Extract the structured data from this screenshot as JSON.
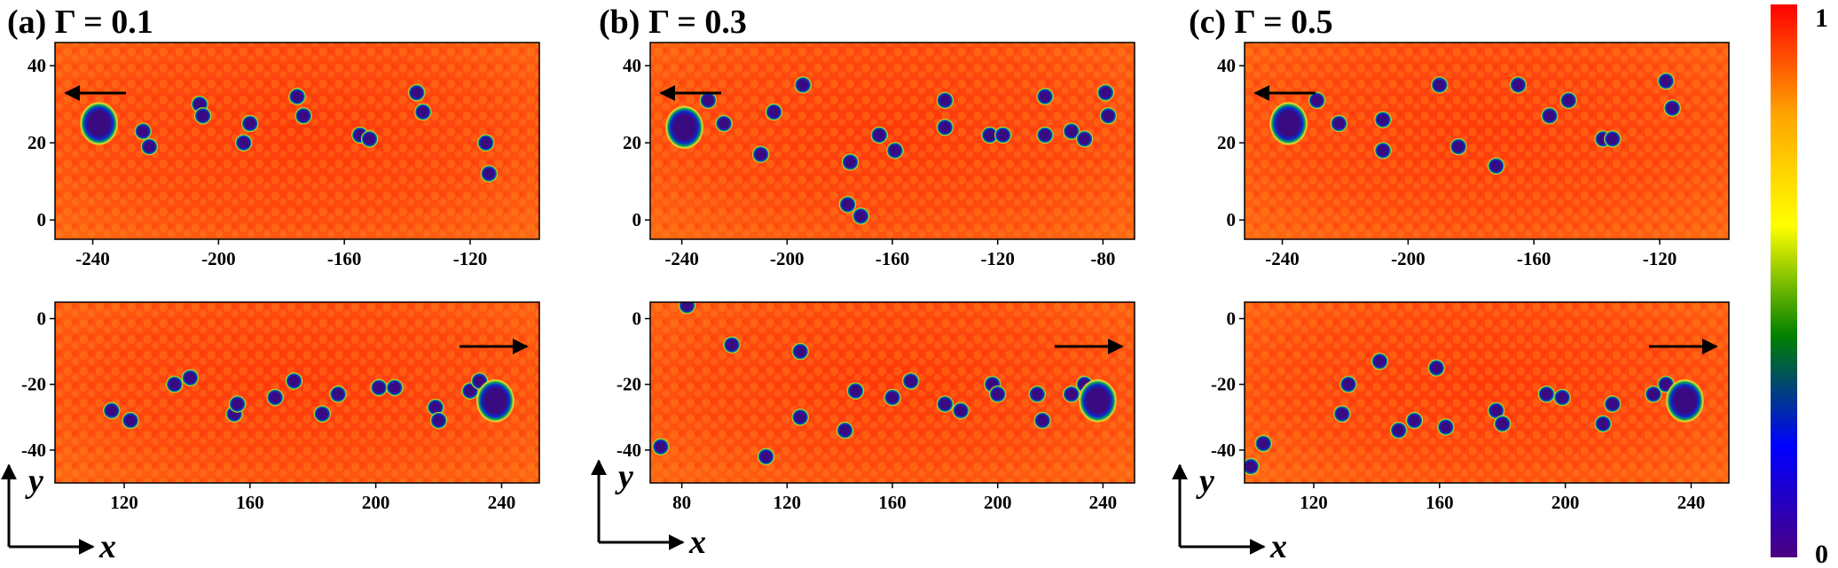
{
  "colorbar": {
    "max_label": "1",
    "min_label": "0",
    "colors": [
      "#4b0082",
      "#0000ff",
      "#008000",
      "#ffff00",
      "#ffa500",
      "#ff0000"
    ]
  },
  "axis_legend": {
    "x_label": "x",
    "y_label": "y"
  },
  "chart_data": [
    {
      "type": "heatmap",
      "panel": "a",
      "row": "top",
      "title": "(a) Γ = 0.1",
      "xlim": [
        -252,
        -98
      ],
      "ylim": [
        -5,
        46
      ],
      "xticks": [
        -240,
        -200,
        -160,
        -120
      ],
      "yticks": [
        0,
        20,
        40
      ],
      "arrow": "left",
      "large_bubble": {
        "x": -238,
        "y": 25
      },
      "small_bubbles": [
        [
          -224,
          23
        ],
        [
          -222,
          19
        ],
        [
          -206,
          30
        ],
        [
          -205,
          27
        ],
        [
          -192,
          20
        ],
        [
          -190,
          25
        ],
        [
          -175,
          32
        ],
        [
          -173,
          27
        ],
        [
          -155,
          22
        ],
        [
          -152,
          21
        ],
        [
          -137,
          33
        ],
        [
          -135,
          28
        ],
        [
          -115,
          20
        ],
        [
          -114,
          12
        ]
      ]
    },
    {
      "type": "heatmap",
      "panel": "a",
      "row": "bottom",
      "title": "",
      "xlim": [
        98,
        252
      ],
      "ylim": [
        -50,
        5
      ],
      "xticks": [
        120,
        160,
        200,
        240
      ],
      "yticks": [
        0,
        -20,
        -40
      ],
      "arrow": "right",
      "large_bubble": {
        "x": 238,
        "y": -25
      },
      "small_bubbles": [
        [
          116,
          -28
        ],
        [
          122,
          -31
        ],
        [
          136,
          -20
        ],
        [
          141,
          -18
        ],
        [
          155,
          -29
        ],
        [
          156,
          -26
        ],
        [
          168,
          -24
        ],
        [
          174,
          -19
        ],
        [
          183,
          -29
        ],
        [
          188,
          -23
        ],
        [
          201,
          -21
        ],
        [
          206,
          -21
        ],
        [
          219,
          -27
        ],
        [
          220,
          -31
        ],
        [
          230,
          -22
        ],
        [
          233,
          -19
        ]
      ]
    },
    {
      "type": "heatmap",
      "panel": "b",
      "row": "top",
      "title": "(b) Γ = 0.3",
      "xlim": [
        -252,
        -68
      ],
      "ylim": [
        -5,
        46
      ],
      "xticks": [
        -240,
        -200,
        -160,
        -120,
        -80
      ],
      "yticks": [
        0,
        20,
        40
      ],
      "arrow": "left",
      "large_bubble": {
        "x": -239,
        "y": 24
      },
      "small_bubbles": [
        [
          -230,
          31
        ],
        [
          -224,
          25
        ],
        [
          -210,
          17
        ],
        [
          -205,
          28
        ],
        [
          -194,
          35
        ],
        [
          -176,
          15
        ],
        [
          -177,
          4
        ],
        [
          -172,
          1
        ],
        [
          -165,
          22
        ],
        [
          -159,
          18
        ],
        [
          -140,
          31
        ],
        [
          -140,
          24
        ],
        [
          -123,
          22
        ],
        [
          -118,
          22
        ],
        [
          -102,
          32
        ],
        [
          -102,
          22
        ],
        [
          -92,
          23
        ],
        [
          -87,
          21
        ],
        [
          -79,
          33
        ],
        [
          -78,
          27
        ]
      ]
    },
    {
      "type": "heatmap",
      "panel": "b",
      "row": "bottom",
      "title": "",
      "xlim": [
        68,
        252
      ],
      "ylim": [
        -50,
        5
      ],
      "xticks": [
        80,
        120,
        160,
        200,
        240
      ],
      "yticks": [
        0,
        -20,
        -40
      ],
      "arrow": "right",
      "large_bubble": {
        "x": 238,
        "y": -25
      },
      "small_bubbles": [
        [
          72,
          -39
        ],
        [
          82,
          4
        ],
        [
          99,
          -8
        ],
        [
          112,
          -42
        ],
        [
          125,
          -10
        ],
        [
          125,
          -30
        ],
        [
          142,
          -34
        ],
        [
          146,
          -22
        ],
        [
          160,
          -24
        ],
        [
          167,
          -19
        ],
        [
          180,
          -26
        ],
        [
          186,
          -28
        ],
        [
          198,
          -20
        ],
        [
          200,
          -23
        ],
        [
          215,
          -23
        ],
        [
          217,
          -31
        ],
        [
          228,
          -23
        ],
        [
          233,
          -20
        ]
      ]
    },
    {
      "type": "heatmap",
      "panel": "c",
      "row": "top",
      "title": "(c) Γ = 0.5",
      "xlim": [
        -252,
        -98
      ],
      "ylim": [
        -5,
        46
      ],
      "xticks": [
        -240,
        -200,
        -160,
        -120
      ],
      "yticks": [
        0,
        20,
        40
      ],
      "arrow": "left",
      "large_bubble": {
        "x": -238,
        "y": 25
      },
      "small_bubbles": [
        [
          -229,
          31
        ],
        [
          -222,
          25
        ],
        [
          -208,
          26
        ],
        [
          -208,
          18
        ],
        [
          -190,
          35
        ],
        [
          -184,
          19
        ],
        [
          -172,
          14
        ],
        [
          -165,
          35
        ],
        [
          -155,
          27
        ],
        [
          -149,
          31
        ],
        [
          -138,
          21
        ],
        [
          -135,
          21
        ],
        [
          -118,
          36
        ],
        [
          -116,
          29
        ]
      ]
    },
    {
      "type": "heatmap",
      "panel": "c",
      "row": "bottom",
      "title": "",
      "xlim": [
        98,
        252
      ],
      "ylim": [
        -50,
        5
      ],
      "xticks": [
        120,
        160,
        200,
        240
      ],
      "yticks": [
        0,
        -20,
        -40
      ],
      "arrow": "right",
      "large_bubble": {
        "x": 238,
        "y": -25
      },
      "small_bubbles": [
        [
          100,
          -45
        ],
        [
          104,
          -38
        ],
        [
          129,
          -29
        ],
        [
          131,
          -20
        ],
        [
          141,
          -13
        ],
        [
          147,
          -34
        ],
        [
          152,
          -31
        ],
        [
          159,
          -15
        ],
        [
          162,
          -33
        ],
        [
          178,
          -28
        ],
        [
          180,
          -32
        ],
        [
          194,
          -23
        ],
        [
          199,
          -24
        ],
        [
          212,
          -32
        ],
        [
          215,
          -26
        ],
        [
          228,
          -23
        ],
        [
          232,
          -20
        ]
      ]
    }
  ]
}
